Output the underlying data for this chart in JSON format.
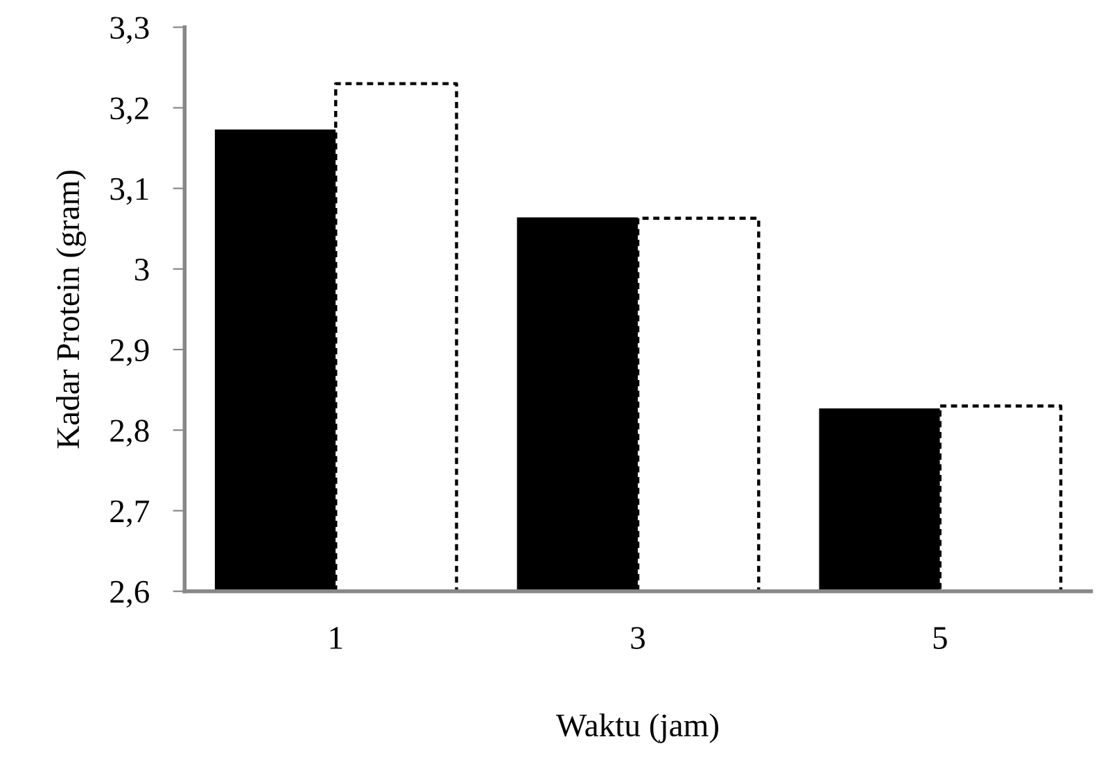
{
  "chart_data": {
    "type": "bar",
    "xlabel": "Waktu (jam)",
    "ylabel": "Kadar Protein (gram)",
    "categories": [
      "1",
      "3",
      "5"
    ],
    "series": [
      {
        "color": "#000000",
        "values": [
          3.173,
          3.064,
          2.827
        ]
      },
      {
        "color": "#ffffff",
        "values": [
          3.23,
          3.063,
          2.83
        ],
        "line_style": "dashed"
      }
    ],
    "ylim": [
      2.6,
      3.3
    ],
    "yticks": [
      {
        "value": 2.6,
        "label": "2,6"
      },
      {
        "value": 2.7,
        "label": "2,7"
      },
      {
        "value": 2.8,
        "label": "2,8"
      },
      {
        "value": 2.9,
        "label": "2,9"
      },
      3,
      {
        "value": 3.1,
        "label": "3,1"
      },
      {
        "value": 3.2,
        "label": "3,2"
      },
      {
        "value": 3.3,
        "label": "3,3"
      }
    ],
    "grid": false,
    "legend": false
  }
}
